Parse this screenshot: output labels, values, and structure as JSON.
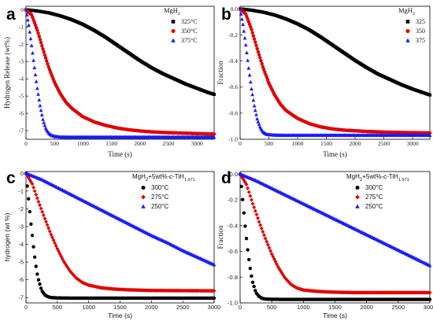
{
  "chart_data": [
    {
      "panel_label": "a",
      "type": "scatter",
      "xlabel": "Time (s)",
      "ylabel": "Hydrogen Release (wt%)",
      "legend_title": "MgH2",
      "legend_position": "top-right",
      "xlim": [
        0,
        3300
      ],
      "ylim": [
        -7.5,
        0.2
      ],
      "xticks": [
        0,
        500,
        1000,
        1500,
        2000,
        2500,
        3000
      ],
      "yticks": [
        0,
        -1,
        -2,
        -3,
        -4,
        -5,
        -6,
        -7
      ],
      "series": [
        {
          "name": "325°C",
          "color": "#000000",
          "marker": "square",
          "x": [
            0,
            200,
            400,
            600,
            800,
            1000,
            1200,
            1400,
            1600,
            1800,
            2000,
            2200,
            2400,
            2600,
            2800,
            3000,
            3200,
            3300
          ],
          "y": [
            0,
            -0.07,
            -0.18,
            -0.35,
            -0.57,
            -0.85,
            -1.2,
            -1.6,
            -2.05,
            -2.5,
            -2.95,
            -3.35,
            -3.7,
            -4.0,
            -4.3,
            -4.55,
            -4.8,
            -4.9
          ]
        },
        {
          "name": "350°C",
          "color": "#e00000",
          "marker": "circle",
          "x": [
            0,
            100,
            200,
            300,
            400,
            500,
            600,
            700,
            800,
            1000,
            1200,
            1400,
            1600,
            1800,
            2000,
            2200,
            2500,
            2800,
            3100,
            3300
          ],
          "y": [
            0,
            -0.3,
            -1.2,
            -2.3,
            -3.35,
            -4.2,
            -4.85,
            -5.35,
            -5.7,
            -6.2,
            -6.5,
            -6.7,
            -6.85,
            -6.95,
            -7.02,
            -7.07,
            -7.12,
            -7.15,
            -7.18,
            -7.2
          ]
        },
        {
          "name": "375°C",
          "color": "#1a1aff",
          "marker": "triangle",
          "x": [
            0,
            50,
            100,
            150,
            200,
            250,
            300,
            350,
            400,
            450,
            500,
            600,
            800,
            1200,
            2000,
            3300
          ],
          "y": [
            0,
            -0.9,
            -2.1,
            -3.4,
            -4.6,
            -5.6,
            -6.4,
            -6.9,
            -7.15,
            -7.28,
            -7.33,
            -7.37,
            -7.38,
            -7.38,
            -7.38,
            -7.38
          ]
        }
      ]
    },
    {
      "panel_label": "b",
      "type": "scatter",
      "xlabel": "Time (s)",
      "ylabel": "Fraction",
      "legend_title": "MgH2",
      "legend_position": "top-right",
      "xlim": [
        0,
        3300
      ],
      "ylim": [
        -1.0,
        0.02
      ],
      "xticks": [
        0,
        500,
        1000,
        1500,
        2000,
        2500,
        3000
      ],
      "yticks": [
        0.0,
        -0.2,
        -0.4,
        -0.6,
        -0.8,
        -1.0
      ],
      "series": [
        {
          "name": "325",
          "color": "#000000",
          "marker": "square",
          "x": [
            0,
            200,
            400,
            600,
            800,
            1000,
            1200,
            1400,
            1600,
            1800,
            2000,
            2200,
            2400,
            2600,
            2800,
            3000,
            3200,
            3300
          ],
          "y": [
            0,
            -0.01,
            -0.025,
            -0.047,
            -0.077,
            -0.115,
            -0.16,
            -0.215,
            -0.275,
            -0.335,
            -0.395,
            -0.45,
            -0.5,
            -0.54,
            -0.58,
            -0.615,
            -0.645,
            -0.66
          ]
        },
        {
          "name": "350",
          "color": "#e00000",
          "marker": "circle",
          "x": [
            0,
            100,
            200,
            300,
            400,
            500,
            600,
            700,
            800,
            1000,
            1200,
            1400,
            1600,
            1800,
            2000,
            2200,
            2500,
            2800,
            3100,
            3300
          ],
          "y": [
            0,
            -0.04,
            -0.16,
            -0.31,
            -0.45,
            -0.57,
            -0.66,
            -0.73,
            -0.78,
            -0.84,
            -0.88,
            -0.905,
            -0.92,
            -0.93,
            -0.935,
            -0.94,
            -0.945,
            -0.948,
            -0.95,
            -0.952
          ]
        },
        {
          "name": "375",
          "color": "#1a1aff",
          "marker": "triangle",
          "x": [
            0,
            50,
            100,
            150,
            200,
            250,
            300,
            350,
            400,
            450,
            500,
            600,
            800,
            1200,
            2000,
            3300
          ],
          "y": [
            0,
            -0.12,
            -0.28,
            -0.46,
            -0.62,
            -0.75,
            -0.85,
            -0.91,
            -0.945,
            -0.96,
            -0.965,
            -0.968,
            -0.97,
            -0.97,
            -0.97,
            -0.97
          ]
        }
      ]
    },
    {
      "panel_label": "c",
      "type": "scatter",
      "xlabel": "Time (s)",
      "ylabel": "hydrogen (wt %)",
      "legend_title": "MgH2+5wt%-c-TiH1.971",
      "legend_position": "top-right",
      "xlim": [
        0,
        3000
      ],
      "ylim": [
        -7.3,
        0.1
      ],
      "xticks": [
        0,
        500,
        1000,
        1500,
        2000,
        2500,
        3000
      ],
      "yticks": [
        0,
        -1,
        -2,
        -3,
        -4,
        -5,
        -6,
        -7
      ],
      "series": [
        {
          "name": "300°C",
          "color": "#000000",
          "marker": "circle",
          "x": [
            0,
            25,
            50,
            75,
            100,
            125,
            150,
            175,
            200,
            250,
            300,
            350,
            400,
            500,
            700,
            1000,
            1500,
            2000,
            2500,
            3000
          ],
          "y": [
            0,
            -0.9,
            -1.8,
            -2.7,
            -3.5,
            -4.3,
            -5.0,
            -5.6,
            -6.0,
            -6.6,
            -6.85,
            -6.95,
            -7.0,
            -7.02,
            -7.03,
            -7.03,
            -7.03,
            -7.03,
            -7.03,
            -7.03
          ]
        },
        {
          "name": "275°C",
          "color": "#e00000",
          "marker": "diamond",
          "x": [
            0,
            100,
            200,
            300,
            400,
            500,
            600,
            700,
            800,
            900,
            1000,
            1200,
            1400,
            1600,
            1800,
            2000,
            2500,
            3000
          ],
          "y": [
            0,
            -0.6,
            -1.6,
            -2.55,
            -3.45,
            -4.25,
            -4.95,
            -5.5,
            -5.9,
            -6.15,
            -6.3,
            -6.45,
            -6.52,
            -6.56,
            -6.58,
            -6.6,
            -6.61,
            -6.62
          ]
        },
        {
          "name": "250°C",
          "color": "#1a1aff",
          "marker": "triangle",
          "x": [
            0,
            250,
            500,
            750,
            1000,
            1250,
            1500,
            1750,
            2000,
            2250,
            2500,
            2750,
            3000
          ],
          "y": [
            0,
            -0.35,
            -0.8,
            -1.25,
            -1.7,
            -2.15,
            -2.6,
            -3.05,
            -3.5,
            -3.9,
            -4.35,
            -4.75,
            -5.15
          ]
        }
      ]
    },
    {
      "panel_label": "d",
      "type": "scatter",
      "xlabel": "Time (s)",
      "ylabel": "Fraction",
      "legend_title": "MgH2+5wt%-c-TiH1.971",
      "legend_position": "top-right",
      "xlim": [
        0,
        3000
      ],
      "ylim": [
        -1.0,
        0.02
      ],
      "xticks": [
        0,
        500,
        1000,
        1500,
        2000,
        2500,
        3000
      ],
      "yticks": [
        0.0,
        -0.2,
        -0.4,
        -0.6,
        -0.8,
        -1.0
      ],
      "series": [
        {
          "name": "300°C",
          "color": "#000000",
          "marker": "circle",
          "x": [
            0,
            25,
            50,
            75,
            100,
            125,
            150,
            175,
            200,
            250,
            300,
            350,
            400,
            500,
            700,
            1000,
            1500,
            2000,
            2500,
            3000
          ],
          "y": [
            0,
            -0.12,
            -0.25,
            -0.38,
            -0.5,
            -0.61,
            -0.7,
            -0.78,
            -0.84,
            -0.92,
            -0.95,
            -0.965,
            -0.97,
            -0.972,
            -0.973,
            -0.973,
            -0.973,
            -0.973,
            -0.973,
            -0.973
          ]
        },
        {
          "name": "275°C",
          "color": "#e00000",
          "marker": "diamond",
          "x": [
            0,
            100,
            200,
            300,
            400,
            500,
            600,
            700,
            800,
            900,
            1000,
            1200,
            1400,
            1600,
            1800,
            2000,
            2500,
            3000
          ],
          "y": [
            0,
            -0.08,
            -0.23,
            -0.37,
            -0.5,
            -0.62,
            -0.72,
            -0.8,
            -0.855,
            -0.885,
            -0.9,
            -0.91,
            -0.915,
            -0.918,
            -0.92,
            -0.92,
            -0.92,
            -0.92
          ]
        },
        {
          "name": "250°C",
          "color": "#1a1aff",
          "marker": "triangle",
          "x": [
            0,
            250,
            500,
            750,
            1000,
            1250,
            1500,
            1750,
            2000,
            2250,
            2500,
            2750,
            3000
          ],
          "y": [
            0,
            -0.05,
            -0.11,
            -0.17,
            -0.23,
            -0.29,
            -0.35,
            -0.41,
            -0.47,
            -0.53,
            -0.59,
            -0.65,
            -0.71
          ]
        }
      ]
    }
  ]
}
